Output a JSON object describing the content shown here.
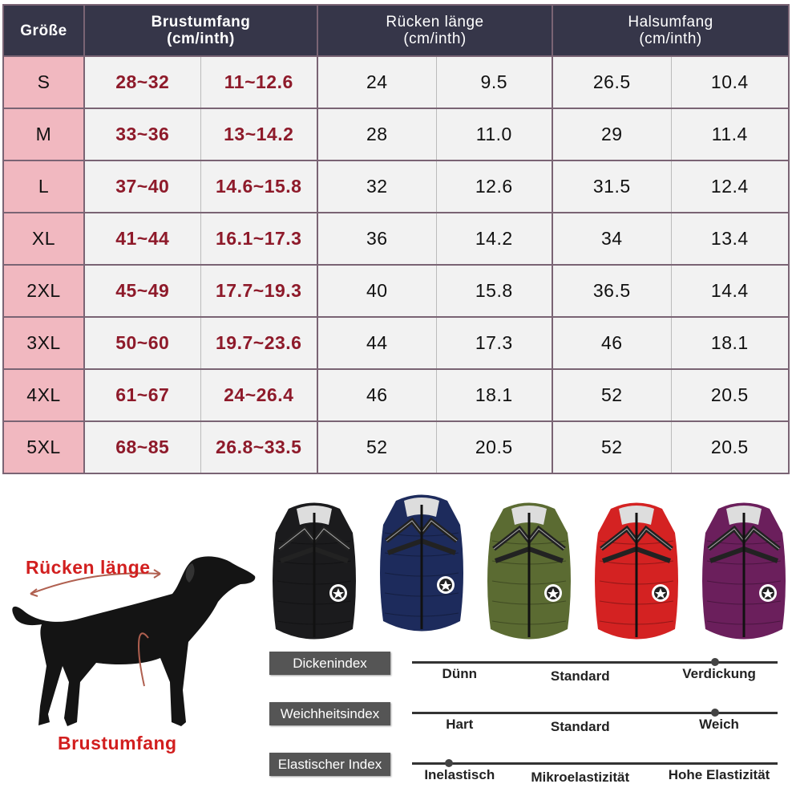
{
  "table": {
    "headers": {
      "size": "Größe",
      "chest": "Brustumfang\n(cm/inth)",
      "back": "Rücken länge\n(cm/inth)",
      "neck": "Halsumfang\n(cm/inth)"
    },
    "rows": [
      {
        "size": "S",
        "chest_cm": "28~32",
        "chest_in": "11~12.6",
        "back_cm": "24",
        "back_in": "9.5",
        "neck_cm": "26.5",
        "neck_in": "10.4"
      },
      {
        "size": "M",
        "chest_cm": "33~36",
        "chest_in": "13~14.2",
        "back_cm": "28",
        "back_in": "11.0",
        "neck_cm": "29",
        "neck_in": "11.4"
      },
      {
        "size": "L",
        "chest_cm": "37~40",
        "chest_in": "14.6~15.8",
        "back_cm": "32",
        "back_in": "12.6",
        "neck_cm": "31.5",
        "neck_in": "12.4"
      },
      {
        "size": "XL",
        "chest_cm": "41~44",
        "chest_in": "16.1~17.3",
        "back_cm": "36",
        "back_in": "14.2",
        "neck_cm": "34",
        "neck_in": "13.4"
      },
      {
        "size": "2XL",
        "chest_cm": "45~49",
        "chest_in": "17.7~19.3",
        "back_cm": "40",
        "back_in": "15.8",
        "neck_cm": "36.5",
        "neck_in": "14.4"
      },
      {
        "size": "3XL",
        "chest_cm": "50~60",
        "chest_in": "19.7~23.6",
        "back_cm": "44",
        "back_in": "17.3",
        "neck_cm": "46",
        "neck_in": "18.1"
      },
      {
        "size": "4XL",
        "chest_cm": "61~67",
        "chest_in": "24~26.4",
        "back_cm": "46",
        "back_in": "18.1",
        "neck_cm": "52",
        "neck_in": "20.5"
      },
      {
        "size": "5XL",
        "chest_cm": "68~85",
        "chest_in": "26.8~33.5",
        "back_cm": "52",
        "back_in": "20.5",
        "neck_cm": "52",
        "neck_in": "20.5"
      }
    ]
  },
  "dog": {
    "back_label": "Rücken länge",
    "chest_label": "Brustumfang"
  },
  "jackets": {
    "colors": [
      "#1b1b1d",
      "#1d2b5c",
      "#5b6b32",
      "#d42222",
      "#6b1f5c"
    ]
  },
  "indices": [
    {
      "label": "Dickenindex",
      "options": [
        "Dünn",
        "Standard",
        "Verdickung"
      ],
      "level": 0.83
    },
    {
      "label": "Weichheitsindex",
      "options": [
        "Hart",
        "Standard",
        "Weich"
      ],
      "level": 0.83
    },
    {
      "label": "Elastischer Index",
      "options": [
        "Inelastisch",
        "Mikroelastizität",
        "Hohe Elastizität"
      ],
      "level": 0.1
    }
  ],
  "colors": {
    "header_bg": "#363649",
    "size_bg": "#f1b8c0",
    "chest_text": "#8e1a2a",
    "dog_label": "#d21f1f"
  }
}
